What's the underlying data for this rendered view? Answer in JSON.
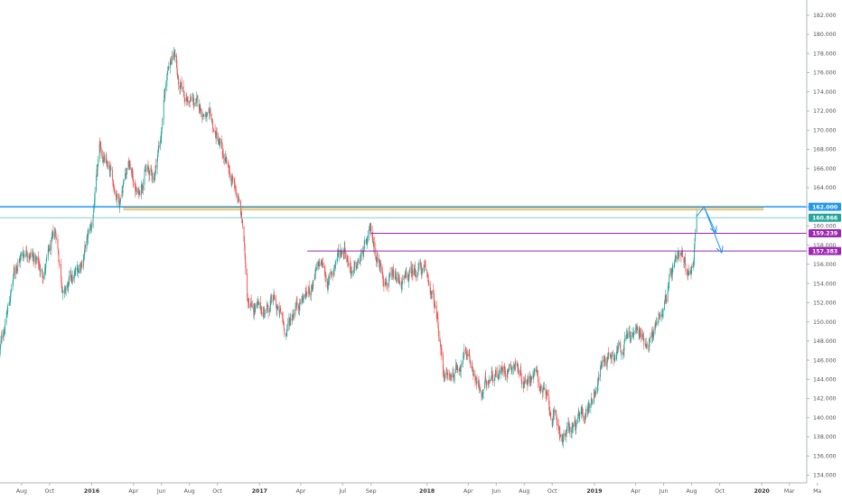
{
  "chart_data": {
    "type": "candlestick",
    "instrument": "",
    "timeframe": "",
    "xlim": [
      "2015-06-15",
      "2020-04-08"
    ],
    "ylim": [
      133.2,
      183.2
    ],
    "y_axis": {
      "position": "right",
      "ticks": [
        "134.000",
        "136.000",
        "138.000",
        "140.000",
        "142.000",
        "144.000",
        "146.000",
        "148.000",
        "150.000",
        "152.000",
        "154.000",
        "156.000",
        "158.000",
        "160.000",
        "162.000",
        "164.000",
        "166.000",
        "168.000",
        "170.000",
        "172.000",
        "174.000",
        "176.000",
        "178.000",
        "180.000",
        "182.000"
      ]
    },
    "x_axis": {
      "ticks": [
        {
          "date": "2015-08-01",
          "label": "Aug"
        },
        {
          "date": "2015-10-01",
          "label": "Oct"
        },
        {
          "date": "2016-01-01",
          "label": "2016"
        },
        {
          "date": "2016-04-01",
          "label": "Apr"
        },
        {
          "date": "2016-06-01",
          "label": "Jun"
        },
        {
          "date": "2016-08-01",
          "label": "Aug"
        },
        {
          "date": "2016-10-01",
          "label": "Oct"
        },
        {
          "date": "2017-01-01",
          "label": "2017"
        },
        {
          "date": "2017-04-01",
          "label": "Apr"
        },
        {
          "date": "2017-07-01",
          "label": "Jul"
        },
        {
          "date": "2017-09-01",
          "label": "Sep"
        },
        {
          "date": "2018-01-01",
          "label": "2018"
        },
        {
          "date": "2018-04-01",
          "label": "Apr"
        },
        {
          "date": "2018-06-01",
          "label": "Jun"
        },
        {
          "date": "2018-08-01",
          "label": "Aug"
        },
        {
          "date": "2018-10-01",
          "label": "Oct"
        },
        {
          "date": "2019-01-01",
          "label": "2019"
        },
        {
          "date": "2019-04-01",
          "label": "Apr"
        },
        {
          "date": "2019-06-01",
          "label": "Jun"
        },
        {
          "date": "2019-08-01",
          "label": "Aug"
        },
        {
          "date": "2019-10-01",
          "label": "Oct"
        },
        {
          "date": "2020-01-01",
          "label": "2020"
        },
        {
          "date": "2020-03-01",
          "label": "Mar"
        },
        {
          "date": "2020-05-01",
          "label": "Ma"
        }
      ]
    },
    "grid": false,
    "price_path": [
      {
        "date": "2015-06-15",
        "price": 147
      },
      {
        "date": "2015-07-20",
        "price": 156
      },
      {
        "date": "2015-08-15",
        "price": 158
      },
      {
        "date": "2015-09-15",
        "price": 155
      },
      {
        "date": "2015-10-15",
        "price": 159
      },
      {
        "date": "2015-11-01",
        "price": 153
      },
      {
        "date": "2015-12-01",
        "price": 155
      },
      {
        "date": "2016-01-01",
        "price": 160
      },
      {
        "date": "2016-01-20",
        "price": 168
      },
      {
        "date": "2016-02-10",
        "price": 165
      },
      {
        "date": "2016-03-01",
        "price": 163
      },
      {
        "date": "2016-03-20",
        "price": 167
      },
      {
        "date": "2016-04-10",
        "price": 163
      },
      {
        "date": "2016-04-25",
        "price": 166
      },
      {
        "date": "2016-05-15",
        "price": 165
      },
      {
        "date": "2016-06-01",
        "price": 170
      },
      {
        "date": "2016-06-15",
        "price": 177
      },
      {
        "date": "2016-07-01",
        "price": 178
      },
      {
        "date": "2016-07-10",
        "price": 174
      },
      {
        "date": "2016-08-01",
        "price": 173
      },
      {
        "date": "2016-09-01",
        "price": 172
      },
      {
        "date": "2016-10-01",
        "price": 169
      },
      {
        "date": "2016-10-20",
        "price": 166
      },
      {
        "date": "2016-11-15",
        "price": 163
      },
      {
        "date": "2016-11-25",
        "price": 160
      },
      {
        "date": "2016-12-05",
        "price": 153
      },
      {
        "date": "2017-01-01",
        "price": 151
      },
      {
        "date": "2017-02-01",
        "price": 152
      },
      {
        "date": "2017-03-01",
        "price": 149
      },
      {
        "date": "2017-03-20",
        "price": 152
      },
      {
        "date": "2017-04-15",
        "price": 153
      },
      {
        "date": "2017-05-15",
        "price": 156
      },
      {
        "date": "2017-06-01",
        "price": 154
      },
      {
        "date": "2017-06-20",
        "price": 157
      },
      {
        "date": "2017-07-05",
        "price": 158
      },
      {
        "date": "2017-07-25",
        "price": 155
      },
      {
        "date": "2017-08-15",
        "price": 157
      },
      {
        "date": "2017-09-01",
        "price": 159
      },
      {
        "date": "2017-09-20",
        "price": 156
      },
      {
        "date": "2017-10-15",
        "price": 154
      },
      {
        "date": "2017-11-15",
        "price": 154
      },
      {
        "date": "2017-12-15",
        "price": 156
      },
      {
        "date": "2018-01-05",
        "price": 154
      },
      {
        "date": "2018-01-20",
        "price": 151
      },
      {
        "date": "2018-02-05",
        "price": 145
      },
      {
        "date": "2018-02-20",
        "price": 144
      },
      {
        "date": "2018-03-15",
        "price": 146
      },
      {
        "date": "2018-04-01",
        "price": 147
      },
      {
        "date": "2018-05-01",
        "price": 142
      },
      {
        "date": "2018-05-20",
        "price": 145
      },
      {
        "date": "2018-06-15",
        "price": 145
      },
      {
        "date": "2018-07-10",
        "price": 146
      },
      {
        "date": "2018-08-01",
        "price": 144
      },
      {
        "date": "2018-08-20",
        "price": 145
      },
      {
        "date": "2018-09-10",
        "price": 143
      },
      {
        "date": "2018-10-01",
        "price": 140
      },
      {
        "date": "2018-10-25",
        "price": 138
      },
      {
        "date": "2018-11-15",
        "price": 139
      },
      {
        "date": "2018-12-10",
        "price": 140
      },
      {
        "date": "2019-01-01",
        "price": 143
      },
      {
        "date": "2019-01-20",
        "price": 146
      },
      {
        "date": "2019-02-10",
        "price": 147
      },
      {
        "date": "2019-03-05",
        "price": 148
      },
      {
        "date": "2019-04-01",
        "price": 149
      },
      {
        "date": "2019-04-20",
        "price": 148
      },
      {
        "date": "2019-05-10",
        "price": 149
      },
      {
        "date": "2019-06-01",
        "price": 152
      },
      {
        "date": "2019-06-20",
        "price": 155
      },
      {
        "date": "2019-07-10",
        "price": 156
      },
      {
        "date": "2019-07-25",
        "price": 155
      },
      {
        "date": "2019-08-05",
        "price": 157
      },
      {
        "date": "2019-08-12",
        "price": 161
      }
    ],
    "horizontal_levels": [
      {
        "price": 162.0,
        "color": "#2196f3",
        "from": "2015-06-15",
        "to": "2020-04-08",
        "label": "162.000",
        "width": 1.5
      },
      {
        "price": 161.9,
        "color": "#d4a33a",
        "from": "2016-03-10",
        "to": "2020-01-05",
        "label": "",
        "width": 1.2
      },
      {
        "price": 161.7,
        "color": "#d4a33a",
        "from": "2016-03-10",
        "to": "2020-01-05",
        "label": "",
        "width": 1.0
      },
      {
        "price": 160.866,
        "color": "#7fd4d0",
        "from": "2015-06-15",
        "to": "2020-04-08",
        "label": "160.866",
        "width": 1
      },
      {
        "price": 159.239,
        "color": "#9c27b0",
        "from": "2017-09-01",
        "to": "2020-04-08",
        "label": "159.239",
        "width": 1
      },
      {
        "price": 157.383,
        "color": "#9c27b0",
        "from": "2017-04-15",
        "to": "2020-04-08",
        "label": "157.383",
        "width": 1
      }
    ],
    "projection_arrows": [
      {
        "path": [
          {
            "date": "2019-08-12",
            "price": 161.0
          },
          {
            "date": "2019-08-28",
            "price": 162.0
          },
          {
            "date": "2019-09-22",
            "price": 159.4
          }
        ],
        "color": "#2196f3"
      },
      {
        "path": [
          {
            "date": "2019-08-28",
            "price": 162.0
          },
          {
            "date": "2019-10-05",
            "price": 157.3
          }
        ],
        "color": "#2196f3"
      }
    ],
    "colors": {
      "up": "#26a69a",
      "down": "#ef5350",
      "axis_text": "#555555",
      "axis_line": "#b2b5be",
      "label_blue": "#2196f3",
      "label_teal": "#26a69a",
      "label_purple": "#9c27b0"
    }
  }
}
